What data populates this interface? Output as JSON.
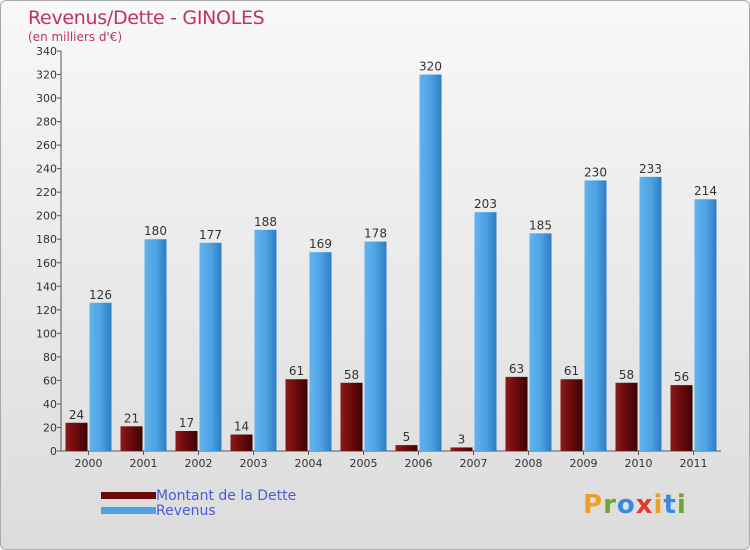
{
  "title": "Revenus/Dette - GINOLES",
  "subtitle": "(en milliers d'€)",
  "logo_letters": [
    "P",
    "r",
    "o",
    "x",
    "i",
    "t",
    "i"
  ],
  "legend": [
    {
      "label": "Montant de la Dette",
      "color": "#6b0a0a"
    },
    {
      "label": "Revenus",
      "color": "#4fa3e3"
    }
  ],
  "chart_data": {
    "type": "bar",
    "categories": [
      "2000",
      "2001",
      "2002",
      "2003",
      "2004",
      "2005",
      "2006",
      "2007",
      "2008",
      "2009",
      "2010",
      "2011"
    ],
    "series": [
      {
        "name": "Montant de la Dette",
        "values": [
          24,
          21,
          17,
          14,
          61,
          58,
          5,
          3,
          63,
          61,
          58,
          56
        ]
      },
      {
        "name": "Revenus",
        "values": [
          126,
          180,
          177,
          188,
          169,
          178,
          320,
          203,
          185,
          230,
          233,
          214
        ]
      }
    ],
    "ylim": [
      0,
      340
    ],
    "yticks": [
      0,
      20,
      40,
      60,
      80,
      100,
      120,
      140,
      160,
      180,
      200,
      220,
      240,
      260,
      280,
      300,
      320,
      340
    ],
    "title": "Revenus/Dette - GINOLES",
    "ylabel": "(en milliers d'€)",
    "legend_position": "bottom-left",
    "grid": false
  }
}
